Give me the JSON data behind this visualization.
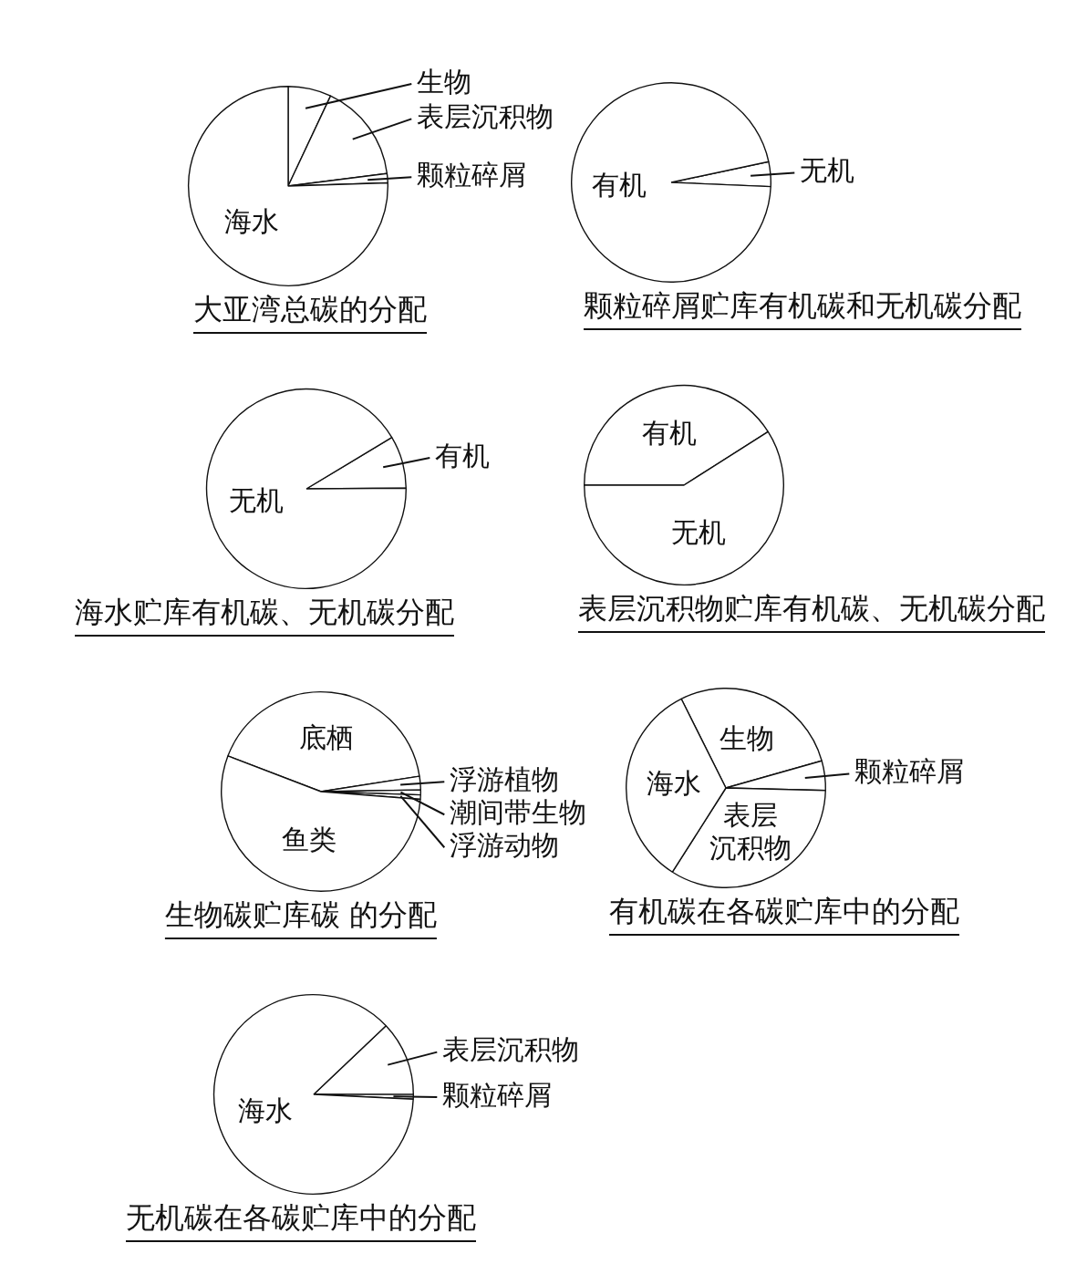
{
  "chart_data": [
    {
      "type": "pie",
      "title": "大亚湾总碳的分配",
      "categories": [
        "生物",
        "表层沉积物",
        "颗粒碎屑",
        "海水"
      ],
      "values": [
        7,
        16,
        1.5,
        75.5
      ],
      "colors": [
        "#ffffff",
        "#ffffff",
        "#ffffff",
        "#ffffff"
      ]
    },
    {
      "type": "pie",
      "title": "颗粒碎屑贮库有机碳和无机碳分配",
      "categories": [
        "无机",
        "有机"
      ],
      "values": [
        4,
        96
      ],
      "colors": [
        "#ffffff",
        "#ffffff"
      ]
    },
    {
      "type": "pie",
      "title": "海水贮库有机碳、无机碳分配",
      "categories": [
        "有机",
        "无机"
      ],
      "values": [
        8.5,
        91.5
      ],
      "colors": [
        "#ffffff",
        "#ffffff"
      ]
    },
    {
      "type": "pie",
      "title": "表层沉积物贮库有机碳、无机碳分配",
      "categories": [
        "有机",
        "无机"
      ],
      "values": [
        41,
        59
      ],
      "colors": [
        "#ffffff",
        "#ffffff"
      ]
    },
    {
      "type": "pie",
      "title": "生物碳贮库碳 的分配",
      "categories": [
        "底栖",
        "浮游植物",
        "潮间带生物",
        "浮游动物",
        "鱼类"
      ],
      "values": [
        41.7,
        2.2,
        0.8,
        0.7,
        54.6
      ],
      "colors": [
        "#ffffff",
        "#ffffff",
        "#ffffff",
        "#ffffff",
        "#ffffff"
      ]
    },
    {
      "type": "pie",
      "title": "有机碳在各碳贮库中的分配",
      "categories": [
        "生物",
        "颗粒碎屑",
        "表层沉积物",
        "海水"
      ],
      "values": [
        28,
        4.8,
        33.6,
        33.6
      ],
      "colors": [
        "#ffffff",
        "#ffffff",
        "#ffffff",
        "#ffffff"
      ]
    },
    {
      "type": "pie",
      "title": "无机碳在各碳贮库中的分配",
      "categories": [
        "表层沉积物",
        "颗粒碎屑",
        "海水"
      ],
      "values": [
        12.1,
        0.75,
        87.15
      ],
      "colors": [
        "#ffffff",
        "#ffffff",
        "#ffffff"
      ]
    }
  ]
}
